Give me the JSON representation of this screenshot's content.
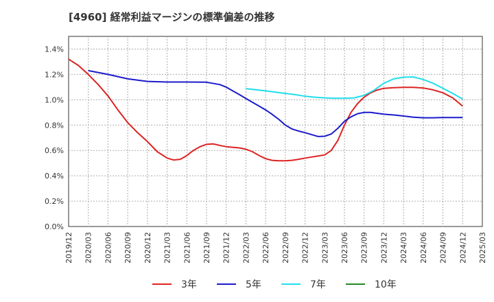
{
  "chart_data": {
    "type": "line",
    "title": "[4960]  経常利益マージンの標準偏差の推移",
    "xlabel": "",
    "ylabel": "",
    "x_ticks": [
      "2019/12",
      "2020/03",
      "2020/06",
      "2020/09",
      "2020/12",
      "2021/03",
      "2021/06",
      "2021/09",
      "2021/12",
      "2022/03",
      "2022/06",
      "2022/09",
      "2022/12",
      "2023/03",
      "2023/06",
      "2023/09",
      "2023/12",
      "2024/03",
      "2024/06",
      "2024/09",
      "2024/12",
      "2025/03"
    ],
    "y_ticks": [
      "0.0%",
      "0.2%",
      "0.4%",
      "0.6%",
      "0.8%",
      "1.0%",
      "1.2%",
      "1.4%"
    ],
    "ylim": [
      0,
      1.5
    ],
    "grid": true,
    "legend_position": "bottom",
    "series": [
      {
        "name": "3年",
        "color": "#dd2222",
        "x": [
          0,
          0.5,
          1,
          1.5,
          2,
          2.5,
          3,
          3.5,
          4,
          4.5,
          5,
          5.33,
          5.67,
          6,
          6.33,
          6.67,
          7,
          7.33,
          7.67,
          8,
          8.33,
          8.67,
          9,
          9.33,
          9.67,
          10,
          10.33,
          10.67,
          11,
          11.33,
          11.67,
          12,
          12.33,
          12.67,
          13,
          13.33,
          13.67,
          14,
          14.33,
          14.67,
          15,
          15.33,
          15.67,
          16,
          16.5,
          17,
          17.5,
          18,
          18.5,
          19,
          19.5,
          20
        ],
        "values": [
          1.32,
          1.27,
          1.2,
          1.12,
          1.03,
          0.92,
          0.82,
          0.74,
          0.67,
          0.59,
          0.54,
          0.525,
          0.53,
          0.56,
          0.6,
          0.63,
          0.648,
          0.652,
          0.64,
          0.63,
          0.625,
          0.62,
          0.61,
          0.59,
          0.56,
          0.535,
          0.522,
          0.518,
          0.518,
          0.522,
          0.53,
          0.54,
          0.548,
          0.556,
          0.565,
          0.6,
          0.68,
          0.8,
          0.9,
          0.97,
          1.02,
          1.055,
          1.077,
          1.09,
          1.095,
          1.098,
          1.098,
          1.093,
          1.078,
          1.055,
          1.015,
          0.95
        ]
      },
      {
        "name": "5年",
        "color": "#1a1acc",
        "x": [
          1,
          2,
          3,
          4,
          5,
          6,
          7,
          7.67,
          8,
          8.33,
          8.67,
          9,
          9.33,
          9.67,
          10,
          10.33,
          10.67,
          11,
          11.33,
          11.67,
          12,
          12.33,
          12.67,
          13,
          13.33,
          13.67,
          14,
          14.33,
          14.67,
          15,
          15.33,
          15.67,
          16,
          16.5,
          17,
          17.5,
          18,
          18.5,
          19,
          19.5,
          20
        ],
        "values": [
          1.23,
          1.2,
          1.165,
          1.145,
          1.14,
          1.14,
          1.138,
          1.12,
          1.1,
          1.07,
          1.04,
          1.01,
          0.98,
          0.95,
          0.92,
          0.885,
          0.845,
          0.8,
          0.77,
          0.753,
          0.74,
          0.725,
          0.71,
          0.712,
          0.73,
          0.775,
          0.83,
          0.865,
          0.89,
          0.9,
          0.9,
          0.893,
          0.886,
          0.88,
          0.872,
          0.862,
          0.858,
          0.858,
          0.86,
          0.86,
          0.86
        ]
      },
      {
        "name": "7年",
        "color": "#22ddee",
        "x": [
          9,
          10,
          10.5,
          11,
          11.5,
          12,
          12.5,
          13,
          13.5,
          14,
          14.5,
          15,
          15.5,
          16,
          16.5,
          17,
          17.5,
          18,
          18.5,
          19,
          19.5,
          20
        ],
        "values": [
          1.088,
          1.07,
          1.06,
          1.05,
          1.04,
          1.028,
          1.02,
          1.015,
          1.012,
          1.012,
          1.015,
          1.035,
          1.075,
          1.13,
          1.165,
          1.178,
          1.18,
          1.16,
          1.13,
          1.09,
          1.05,
          1.005
        ]
      },
      {
        "name": "10年",
        "color": "#228822",
        "x": [],
        "values": []
      }
    ]
  }
}
